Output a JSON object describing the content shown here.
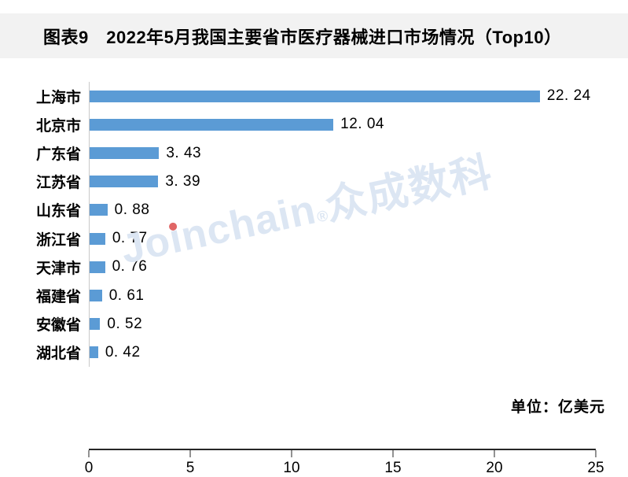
{
  "header": {
    "title": "图表9　2022年5月我国主要省市医疗器械进口市场情况（Top10）"
  },
  "footer": {
    "unit_label": "单位：亿美元"
  },
  "watermark": {
    "prefix": "Jo",
    "dotless_i": "ı",
    "suffix": "nchain",
    "reg": "®",
    "cjk": "众成数科",
    "full_text": "Joinchain®众成数科"
  },
  "colors": {
    "bar": "#5B9BD5",
    "title_band_bg": "#F2F2F2",
    "y_axis_line": "#C9C9C9",
    "x_axis_line": "#262626",
    "watermark_blue": "#DCE6F3",
    "watermark_dot_red": "#E06666",
    "text": "#000000"
  },
  "chart_data": {
    "type": "bar",
    "orientation": "horizontal",
    "title": "2022年5月我国主要省市医疗器械进口市场情况（Top10）",
    "unit": "亿美元",
    "categories": [
      "上海市",
      "北京市",
      "广东省",
      "江苏省",
      "山东省",
      "浙江省",
      "天津市",
      "福建省",
      "安徽省",
      "湖北省"
    ],
    "values": [
      22.24,
      12.04,
      3.43,
      3.39,
      0.88,
      0.77,
      0.76,
      0.61,
      0.52,
      0.42
    ],
    "value_labels": [
      "22. 24",
      "12. 04",
      "3. 43",
      "3. 39",
      "0. 88",
      "0. 77",
      "0. 76",
      "0. 61",
      "0. 52",
      "0. 42"
    ],
    "x_ticks": [
      0,
      5,
      10,
      15,
      20,
      25
    ],
    "x_tick_labels": [
      "0",
      "5",
      "10",
      "15",
      "20",
      "25"
    ],
    "xlim": [
      0,
      25
    ],
    "xlabel": "",
    "ylabel": "",
    "grid": false,
    "legend": false,
    "bar_color": "#5B9BD5",
    "data_labels_shown": true
  }
}
